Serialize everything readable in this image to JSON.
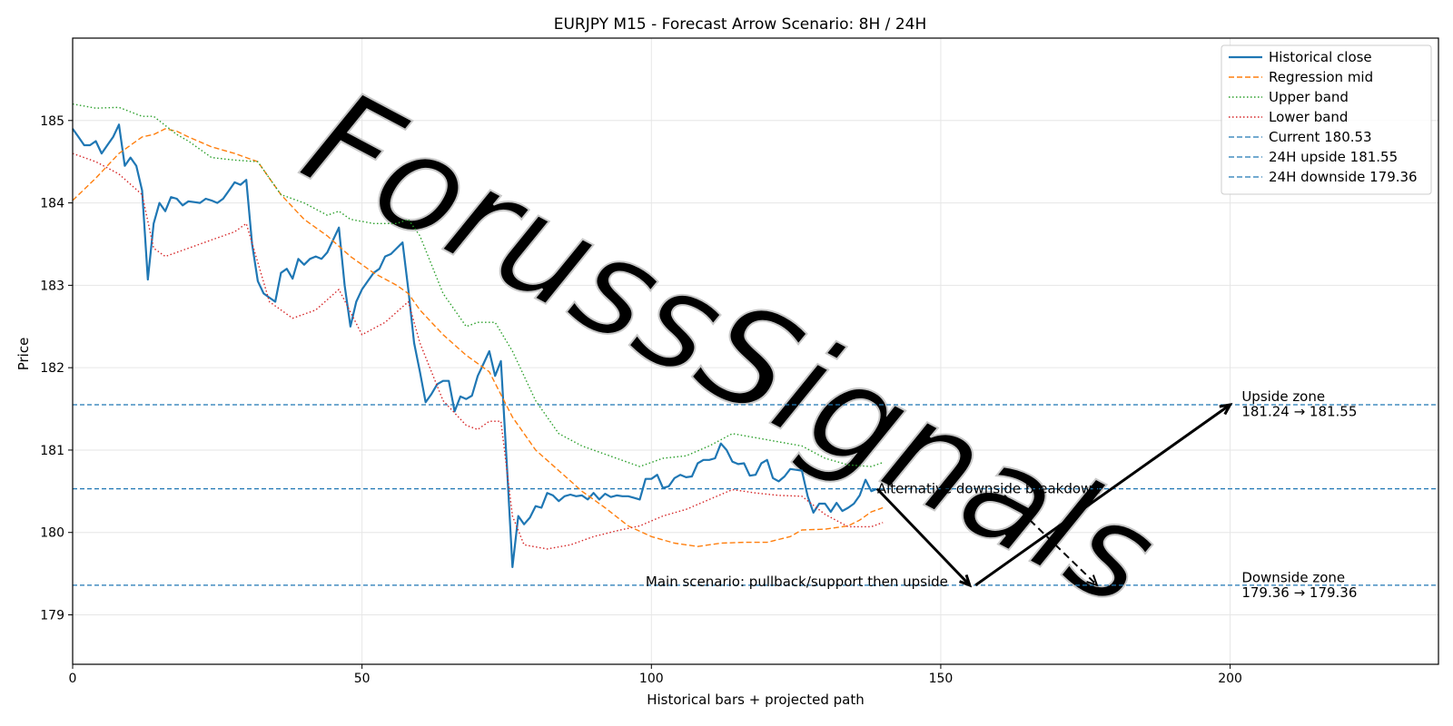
{
  "chart_data": {
    "type": "line",
    "title": "EURJPY M15 - Forecast Arrow Scenario: 8H / 24H",
    "xlabel": "Historical bars + projected path",
    "ylabel": "Price",
    "xlim": [
      0,
      236
    ],
    "ylim": [
      178.4,
      186.0
    ],
    "x_ticks": [
      0,
      50,
      100,
      150,
      200
    ],
    "y_ticks": [
      179,
      180,
      181,
      182,
      183,
      184,
      185
    ],
    "grid": true,
    "legend_position": "top-right",
    "watermark": "ForussSignals",
    "series": [
      {
        "name": "Historical close",
        "color": "#1f77b4",
        "style": "solid",
        "points": [
          [
            0,
            184.9
          ],
          [
            1,
            184.8
          ],
          [
            2,
            184.7
          ],
          [
            3,
            184.7
          ],
          [
            4,
            184.75
          ],
          [
            5,
            184.6
          ],
          [
            6,
            184.7
          ],
          [
            7,
            184.8
          ],
          [
            8,
            184.95
          ],
          [
            9,
            184.45
          ],
          [
            10,
            184.55
          ],
          [
            11,
            184.45
          ],
          [
            12,
            184.15
          ],
          [
            13,
            183.07
          ],
          [
            14,
            183.75
          ],
          [
            15,
            184.0
          ],
          [
            16,
            183.9
          ],
          [
            17,
            184.07
          ],
          [
            18,
            184.05
          ],
          [
            19,
            183.97
          ],
          [
            20,
            184.02
          ],
          [
            21,
            184.01
          ],
          [
            22,
            184.0
          ],
          [
            23,
            184.05
          ],
          [
            24,
            184.03
          ],
          [
            25,
            184.0
          ],
          [
            26,
            184.05
          ],
          [
            27,
            184.15
          ],
          [
            28,
            184.25
          ],
          [
            29,
            184.22
          ],
          [
            30,
            184.28
          ],
          [
            31,
            183.5
          ],
          [
            32,
            183.05
          ],
          [
            33,
            182.9
          ],
          [
            34,
            182.85
          ],
          [
            35,
            182.8
          ],
          [
            36,
            183.15
          ],
          [
            37,
            183.2
          ],
          [
            38,
            183.08
          ],
          [
            39,
            183.32
          ],
          [
            40,
            183.25
          ],
          [
            41,
            183.32
          ],
          [
            42,
            183.35
          ],
          [
            43,
            183.32
          ],
          [
            44,
            183.4
          ],
          [
            45,
            183.55
          ],
          [
            46,
            183.7
          ],
          [
            47,
            183.0
          ],
          [
            48,
            182.5
          ],
          [
            49,
            182.8
          ],
          [
            50,
            182.95
          ],
          [
            51,
            183.05
          ],
          [
            52,
            183.15
          ],
          [
            53,
            183.2
          ],
          [
            54,
            183.35
          ],
          [
            55,
            183.38
          ],
          [
            56,
            183.45
          ],
          [
            57,
            183.52
          ],
          [
            58,
            182.95
          ],
          [
            59,
            182.3
          ],
          [
            60,
            181.95
          ],
          [
            61,
            181.58
          ],
          [
            62,
            181.68
          ],
          [
            63,
            181.8
          ],
          [
            64,
            181.84
          ],
          [
            65,
            181.84
          ],
          [
            66,
            181.47
          ],
          [
            67,
            181.65
          ],
          [
            68,
            181.62
          ],
          [
            69,
            181.66
          ],
          [
            70,
            181.9
          ],
          [
            71,
            182.05
          ],
          [
            72,
            182.2
          ],
          [
            73,
            181.9
          ],
          [
            74,
            182.08
          ],
          [
            75,
            180.85
          ],
          [
            76,
            179.58
          ],
          [
            77,
            180.2
          ],
          [
            78,
            180.1
          ],
          [
            79,
            180.18
          ],
          [
            80,
            180.32
          ],
          [
            81,
            180.3
          ],
          [
            82,
            180.48
          ],
          [
            83,
            180.45
          ],
          [
            84,
            180.38
          ],
          [
            85,
            180.44
          ],
          [
            86,
            180.46
          ],
          [
            87,
            180.44
          ],
          [
            88,
            180.45
          ],
          [
            89,
            180.4
          ],
          [
            90,
            180.48
          ],
          [
            91,
            180.4
          ],
          [
            92,
            180.47
          ],
          [
            93,
            180.43
          ],
          [
            94,
            180.45
          ],
          [
            95,
            180.44
          ],
          [
            96,
            180.44
          ],
          [
            97,
            180.42
          ],
          [
            98,
            180.4
          ],
          [
            99,
            180.65
          ],
          [
            100,
            180.65
          ],
          [
            101,
            180.7
          ],
          [
            102,
            180.54
          ],
          [
            103,
            180.56
          ],
          [
            104,
            180.66
          ],
          [
            105,
            180.7
          ],
          [
            106,
            180.67
          ],
          [
            107,
            180.68
          ],
          [
            108,
            180.84
          ],
          [
            109,
            180.88
          ],
          [
            110,
            180.88
          ],
          [
            111,
            180.9
          ],
          [
            112,
            181.08
          ],
          [
            113,
            181.0
          ],
          [
            114,
            180.86
          ],
          [
            115,
            180.83
          ],
          [
            116,
            180.84
          ],
          [
            117,
            180.69
          ],
          [
            118,
            180.7
          ],
          [
            119,
            180.84
          ],
          [
            120,
            180.88
          ],
          [
            121,
            180.66
          ],
          [
            122,
            180.62
          ],
          [
            123,
            180.68
          ],
          [
            124,
            180.77
          ],
          [
            125,
            180.76
          ],
          [
            126,
            180.75
          ],
          [
            127,
            180.44
          ],
          [
            128,
            180.24
          ],
          [
            129,
            180.35
          ],
          [
            130,
            180.35
          ],
          [
            131,
            180.25
          ],
          [
            132,
            180.36
          ],
          [
            133,
            180.26
          ],
          [
            134,
            180.3
          ],
          [
            135,
            180.35
          ],
          [
            136,
            180.45
          ],
          [
            137,
            180.64
          ],
          [
            138,
            180.5
          ],
          [
            139,
            180.53
          ]
        ]
      },
      {
        "name": "Regression mid",
        "color": "#ff7f0e",
        "style": "dashed",
        "points": [
          [
            0,
            184.03
          ],
          [
            4,
            184.3
          ],
          [
            8,
            184.6
          ],
          [
            12,
            184.8
          ],
          [
            14,
            184.83
          ],
          [
            16,
            184.9
          ],
          [
            18,
            184.87
          ],
          [
            20,
            184.8
          ],
          [
            24,
            184.68
          ],
          [
            28,
            184.6
          ],
          [
            32,
            184.5
          ],
          [
            36,
            184.1
          ],
          [
            40,
            183.8
          ],
          [
            44,
            183.6
          ],
          [
            48,
            183.35
          ],
          [
            52,
            183.15
          ],
          [
            56,
            183.0
          ],
          [
            58,
            182.9
          ],
          [
            60,
            182.7
          ],
          [
            64,
            182.4
          ],
          [
            68,
            182.15
          ],
          [
            72,
            181.95
          ],
          [
            76,
            181.4
          ],
          [
            80,
            181.0
          ],
          [
            84,
            180.75
          ],
          [
            88,
            180.5
          ],
          [
            92,
            180.3
          ],
          [
            96,
            180.08
          ],
          [
            100,
            179.95
          ],
          [
            104,
            179.87
          ],
          [
            108,
            179.83
          ],
          [
            112,
            179.87
          ],
          [
            116,
            179.88
          ],
          [
            120,
            179.88
          ],
          [
            124,
            179.95
          ],
          [
            126,
            180.03
          ],
          [
            130,
            180.04
          ],
          [
            134,
            180.08
          ],
          [
            136,
            180.15
          ],
          [
            138,
            180.25
          ],
          [
            140,
            180.3
          ]
        ]
      },
      {
        "name": "Upper band",
        "color": "#2ca02c",
        "style": "dotted",
        "points": [
          [
            0,
            185.2
          ],
          [
            4,
            185.15
          ],
          [
            8,
            185.16
          ],
          [
            12,
            185.05
          ],
          [
            14,
            185.05
          ],
          [
            18,
            184.83
          ],
          [
            20,
            184.75
          ],
          [
            24,
            184.55
          ],
          [
            28,
            184.52
          ],
          [
            32,
            184.5
          ],
          [
            36,
            184.1
          ],
          [
            40,
            184.0
          ],
          [
            44,
            183.85
          ],
          [
            46,
            183.9
          ],
          [
            48,
            183.8
          ],
          [
            52,
            183.75
          ],
          [
            56,
            183.75
          ],
          [
            58,
            183.8
          ],
          [
            60,
            183.6
          ],
          [
            64,
            182.9
          ],
          [
            68,
            182.5
          ],
          [
            70,
            182.55
          ],
          [
            73,
            182.55
          ],
          [
            76,
            182.2
          ],
          [
            80,
            181.6
          ],
          [
            84,
            181.2
          ],
          [
            88,
            181.05
          ],
          [
            92,
            180.95
          ],
          [
            96,
            180.85
          ],
          [
            98,
            180.8
          ],
          [
            102,
            180.9
          ],
          [
            106,
            180.93
          ],
          [
            110,
            181.05
          ],
          [
            114,
            181.2
          ],
          [
            118,
            181.15
          ],
          [
            122,
            181.1
          ],
          [
            126,
            181.05
          ],
          [
            130,
            180.9
          ],
          [
            134,
            180.82
          ],
          [
            138,
            180.8
          ],
          [
            140,
            180.85
          ]
        ]
      },
      {
        "name": "Lower band",
        "color": "#d62728",
        "style": "dotted",
        "points": [
          [
            0,
            184.6
          ],
          [
            4,
            184.5
          ],
          [
            8,
            184.35
          ],
          [
            12,
            184.1
          ],
          [
            14,
            183.45
          ],
          [
            16,
            183.35
          ],
          [
            20,
            183.45
          ],
          [
            24,
            183.55
          ],
          [
            28,
            183.65
          ],
          [
            30,
            183.75
          ],
          [
            34,
            182.8
          ],
          [
            38,
            182.6
          ],
          [
            42,
            182.7
          ],
          [
            46,
            182.95
          ],
          [
            50,
            182.4
          ],
          [
            54,
            182.55
          ],
          [
            58,
            182.8
          ],
          [
            60,
            182.3
          ],
          [
            64,
            181.6
          ],
          [
            68,
            181.3
          ],
          [
            70,
            181.25
          ],
          [
            72,
            181.35
          ],
          [
            74,
            181.35
          ],
          [
            76,
            180.2
          ],
          [
            78,
            179.85
          ],
          [
            82,
            179.8
          ],
          [
            86,
            179.85
          ],
          [
            90,
            179.95
          ],
          [
            94,
            180.02
          ],
          [
            98,
            180.08
          ],
          [
            102,
            180.2
          ],
          [
            106,
            180.28
          ],
          [
            110,
            180.4
          ],
          [
            114,
            180.52
          ],
          [
            118,
            180.48
          ],
          [
            122,
            180.45
          ],
          [
            126,
            180.44
          ],
          [
            130,
            180.22
          ],
          [
            134,
            180.07
          ],
          [
            138,
            180.07
          ],
          [
            140,
            180.12
          ]
        ]
      }
    ],
    "horizontal_lines": [
      {
        "name": "Current 180.53",
        "y": 180.53,
        "color": "#1f77b4",
        "style": "dashed"
      },
      {
        "name": "24H upside 181.55",
        "y": 181.55,
        "color": "#1f77b4",
        "style": "dashed"
      },
      {
        "name": "24H downside 179.36",
        "y": 179.36,
        "color": "#1f77b4",
        "style": "dashed"
      }
    ],
    "arrows": [
      {
        "from": [
          139,
          180.53
        ],
        "to": [
          155,
          179.36
        ],
        "style": "solid"
      },
      {
        "from": [
          156,
          179.36
        ],
        "to": [
          200,
          181.55
        ],
        "style": "solid"
      },
      {
        "from": [
          161,
          180.45
        ],
        "to": [
          177,
          179.36
        ],
        "style": "dashed"
      }
    ],
    "annotations": [
      {
        "text": "Alternative downside breakdown",
        "x": 139,
        "y": 180.53
      },
      {
        "text": "Main scenario: pullback/support then upside",
        "x": 99,
        "y": 179.4
      },
      {
        "text": "Upside zone",
        "x": 202,
        "y": 181.65
      },
      {
        "text": "181.24 → 181.55",
        "x": 202,
        "y": 181.47
      },
      {
        "text": "Downside zone",
        "x": 202,
        "y": 179.45
      },
      {
        "text": "179.36 → 179.36",
        "x": 202,
        "y": 179.27
      }
    ]
  }
}
